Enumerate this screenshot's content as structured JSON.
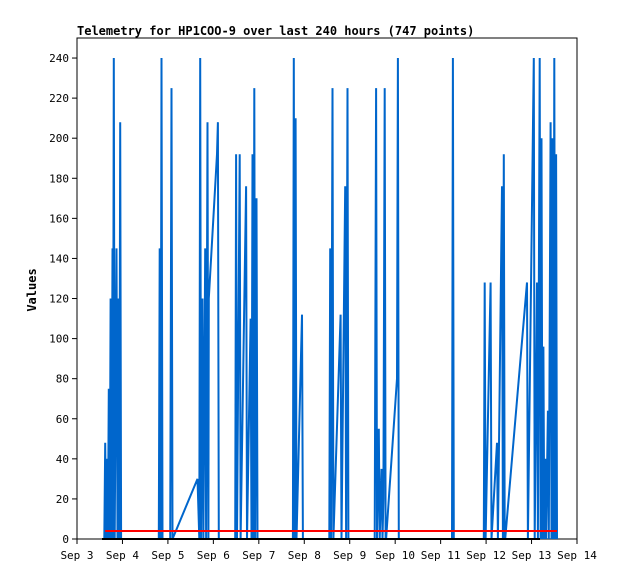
{
  "chart_data": {
    "type": "line",
    "title": "Telemetry for HP1COO-9 over last 240 hours (747 points)",
    "xlabel": "",
    "ylabel": "Values",
    "xlim": [
      0,
      11
    ],
    "ylim": [
      0,
      250
    ],
    "x_ticks": [
      "Sep 3",
      "Sep 4",
      "Sep 5",
      "Sep 6",
      "Sep 7",
      "Sep 8",
      "Sep 9",
      "Sep 10",
      "Sep 11",
      "Sep 12",
      "Sep 13",
      "Sep 14"
    ],
    "y_ticks": [
      0,
      20,
      40,
      60,
      80,
      100,
      120,
      140,
      160,
      180,
      200,
      220,
      240
    ],
    "grid": false,
    "colors": {
      "series_main": "#0066cc",
      "series_flat": "#ff0000",
      "baseline": "#000000"
    },
    "series": [
      {
        "color": "#0066cc",
        "points": [
          [
            0.6,
            0
          ],
          [
            0.62,
            48
          ],
          [
            0.64,
            0
          ],
          [
            0.66,
            40
          ],
          [
            0.68,
            0
          ],
          [
            0.7,
            75
          ],
          [
            0.72,
            0
          ],
          [
            0.74,
            120
          ],
          [
            0.76,
            0
          ],
          [
            0.78,
            145
          ],
          [
            0.79,
            0
          ],
          [
            0.81,
            240
          ],
          [
            0.83,
            0
          ],
          [
            0.87,
            145
          ],
          [
            0.89,
            0
          ],
          [
            0.91,
            120
          ],
          [
            0.93,
            0
          ],
          [
            0.95,
            208
          ],
          [
            0.97,
            0
          ],
          [
            1.8,
            0
          ],
          [
            1.82,
            145
          ],
          [
            1.84,
            0
          ],
          [
            1.86,
            240
          ],
          [
            1.88,
            0
          ],
          [
            2.05,
            0
          ],
          [
            2.08,
            225
          ],
          [
            2.1,
            0
          ],
          [
            2.65,
            30
          ],
          [
            2.69,
            0
          ],
          [
            2.71,
            240
          ],
          [
            2.73,
            0
          ],
          [
            2.76,
            120
          ],
          [
            2.78,
            0
          ],
          [
            2.82,
            145
          ],
          [
            2.84,
            0
          ],
          [
            2.87,
            208
          ],
          [
            2.89,
            0
          ],
          [
            2.9,
            120
          ],
          [
            3.08,
            192
          ],
          [
            3.1,
            208
          ],
          [
            3.12,
            0
          ],
          [
            3.48,
            0
          ],
          [
            3.5,
            192
          ],
          [
            3.52,
            0
          ],
          [
            3.58,
            192
          ],
          [
            3.6,
            0
          ],
          [
            3.72,
            176
          ],
          [
            3.74,
            0
          ],
          [
            3.82,
            110
          ],
          [
            3.84,
            0
          ],
          [
            3.86,
            192
          ],
          [
            3.88,
            0
          ],
          [
            3.9,
            225
          ],
          [
            3.92,
            0
          ],
          [
            3.95,
            170
          ],
          [
            3.97,
            0
          ],
          [
            4.75,
            0
          ],
          [
            4.77,
            240
          ],
          [
            4.79,
            0
          ],
          [
            4.81,
            210
          ],
          [
            4.83,
            0
          ],
          [
            4.95,
            112
          ],
          [
            4.97,
            0
          ],
          [
            5.55,
            0
          ],
          [
            5.57,
            145
          ],
          [
            5.59,
            0
          ],
          [
            5.62,
            225
          ],
          [
            5.64,
            0
          ],
          [
            5.8,
            112
          ],
          [
            5.82,
            0
          ],
          [
            5.9,
            176
          ],
          [
            5.92,
            0
          ],
          [
            5.95,
            225
          ],
          [
            5.97,
            0
          ],
          [
            6.55,
            0
          ],
          [
            6.58,
            225
          ],
          [
            6.6,
            0
          ],
          [
            6.64,
            55
          ],
          [
            6.66,
            0
          ],
          [
            6.7,
            35
          ],
          [
            6.72,
            0
          ],
          [
            6.74,
            20
          ],
          [
            6.77,
            225
          ],
          [
            6.79,
            0
          ],
          [
            6.8,
            0
          ],
          [
            7.04,
            80
          ],
          [
            7.06,
            240
          ],
          [
            7.08,
            0
          ],
          [
            8.25,
            0
          ],
          [
            8.27,
            240
          ],
          [
            8.29,
            0
          ],
          [
            8.95,
            0
          ],
          [
            8.97,
            128
          ],
          [
            8.99,
            0
          ],
          [
            9.1,
            128
          ],
          [
            9.12,
            0
          ],
          [
            9.24,
            48
          ],
          [
            9.26,
            0
          ],
          [
            9.35,
            176
          ],
          [
            9.37,
            0
          ],
          [
            9.39,
            192
          ],
          [
            9.41,
            0
          ],
          [
            9.42,
            0
          ],
          [
            9.9,
            128
          ],
          [
            9.92,
            0
          ],
          [
            10.05,
            240
          ],
          [
            10.07,
            0
          ],
          [
            10.12,
            128
          ],
          [
            10.14,
            0
          ],
          [
            10.18,
            240
          ],
          [
            10.2,
            0
          ],
          [
            10.22,
            200
          ],
          [
            10.24,
            0
          ],
          [
            10.26,
            96
          ],
          [
            10.28,
            0
          ],
          [
            10.3,
            40
          ],
          [
            10.32,
            0
          ],
          [
            10.36,
            64
          ],
          [
            10.38,
            0
          ],
          [
            10.42,
            208
          ],
          [
            10.44,
            0
          ],
          [
            10.46,
            200
          ],
          [
            10.48,
            0
          ],
          [
            10.5,
            240
          ],
          [
            10.52,
            0
          ],
          [
            10.54,
            192
          ],
          [
            10.56,
            0
          ]
        ]
      },
      {
        "color": "#ff0000",
        "points": [
          [
            0.62,
            4
          ],
          [
            10.56,
            4
          ]
        ]
      }
    ]
  }
}
